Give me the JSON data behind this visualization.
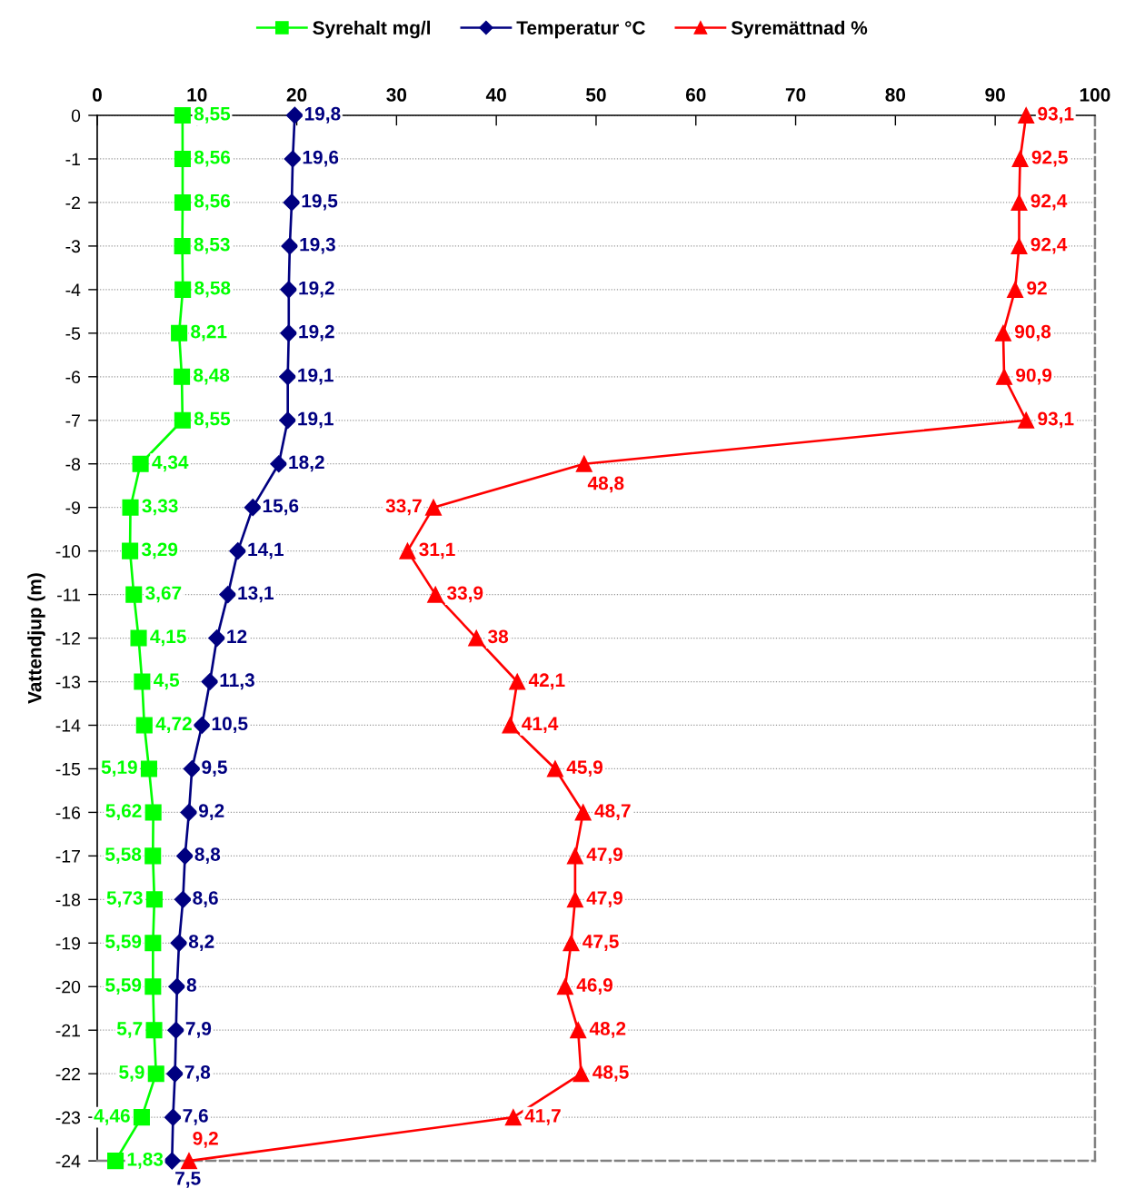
{
  "chart_data": {
    "type": "line",
    "orientation": "horizontal",
    "categories": [
      "0",
      "-1",
      "-2",
      "-3",
      "-4",
      "-5",
      "-6",
      "-7",
      "-8",
      "-9",
      "-10",
      "-11",
      "-12",
      "-13",
      "-14",
      "-15",
      "-16",
      "-17",
      "-18",
      "-19",
      "-20",
      "-21",
      "-22",
      "-23",
      "-24"
    ],
    "ylabel": "Vattendjup (m)",
    "xlim": [
      0,
      100
    ],
    "xticks": [
      0,
      10,
      20,
      30,
      40,
      50,
      60,
      70,
      80,
      90,
      100
    ],
    "grid": "y",
    "legend": "top",
    "series": [
      {
        "name": "Syrehalt mg/l",
        "color": "#00ff00",
        "marker": "square",
        "values": [
          8.55,
          8.56,
          8.56,
          8.53,
          8.58,
          8.21,
          8.48,
          8.55,
          4.34,
          3.33,
          3.29,
          3.67,
          4.15,
          4.5,
          4.72,
          5.19,
          5.62,
          5.58,
          5.73,
          5.59,
          5.59,
          5.7,
          5.9,
          4.46,
          1.83
        ],
        "value_labels": [
          "8,55",
          "8,56",
          "8,56",
          "8,53",
          "8,58",
          "8,21",
          "8,48",
          "8,55",
          "4,34",
          "3,33",
          "3,29",
          "3,67",
          "4,15",
          "4,5",
          "4,72",
          "5,19",
          "5,62",
          "5,58",
          "5,73",
          "5,59",
          "5,59",
          "5,7",
          "5,9",
          "4,46",
          "1,83"
        ]
      },
      {
        "name": "Temperatur °C",
        "color": "#000080",
        "marker": "diamond",
        "values": [
          19.8,
          19.6,
          19.5,
          19.3,
          19.2,
          19.2,
          19.1,
          19.1,
          18.2,
          15.6,
          14.1,
          13.1,
          12,
          11.3,
          10.5,
          9.5,
          9.2,
          8.8,
          8.6,
          8.2,
          8,
          7.9,
          7.8,
          7.6,
          7.5
        ],
        "value_labels": [
          "19,8",
          "19,6",
          "19,5",
          "19,3",
          "19,2",
          "19,2",
          "19,1",
          "19,1",
          "18,2",
          "15,6",
          "14,1",
          "13,1",
          "12",
          "11,3",
          "10,5",
          "9,5",
          "9,2",
          "8,8",
          "8,6",
          "8,2",
          "8",
          "7,9",
          "7,8",
          "7,6",
          "7,5"
        ]
      },
      {
        "name": "Syremättnad %",
        "color": "#ff0000",
        "marker": "triangle",
        "values": [
          93.1,
          92.5,
          92.4,
          92.4,
          92,
          90.8,
          90.9,
          93.1,
          48.8,
          33.7,
          31.1,
          33.9,
          38,
          42.1,
          41.4,
          45.9,
          48.7,
          47.9,
          47.9,
          47.5,
          46.9,
          48.2,
          48.5,
          41.7,
          9.2
        ],
        "value_labels": [
          "93,1",
          "92,5",
          "92,4",
          "92,4",
          "92",
          "90,8",
          "90,9",
          "93,1",
          "48,8",
          "33,7",
          "31,1",
          "33,9",
          "38",
          "42,1",
          "41,4",
          "45,9",
          "48,7",
          "47,9",
          "47,9",
          "47,5",
          "46,9",
          "48,2",
          "48,5",
          "41,7",
          "9,2"
        ]
      }
    ]
  }
}
